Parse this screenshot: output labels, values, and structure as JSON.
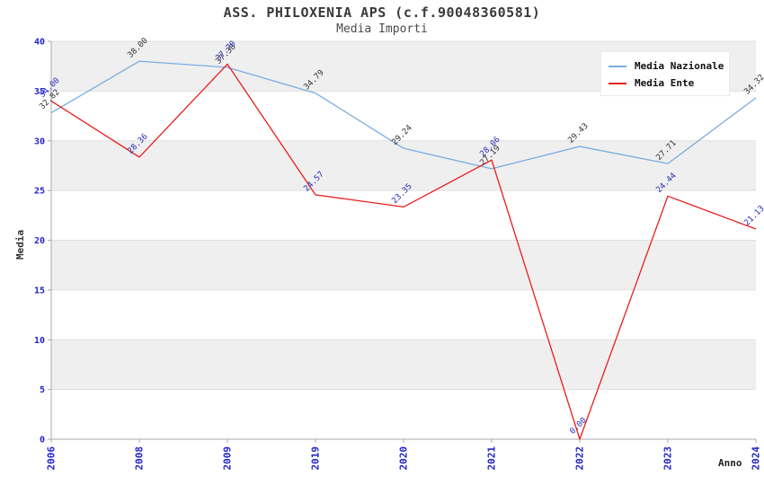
{
  "title": "ASS. PHILOXENIA APS (c.f.90048360581)",
  "subtitle": "Media Importi",
  "legend": {
    "items": [
      {
        "label": "Media Nazionale"
      },
      {
        "label": "Media Ente"
      }
    ]
  },
  "chart_data": {
    "type": "line",
    "title": "ASS. PHILOXENIA APS (c.f.90048360581)",
    "subtitle": "Media Importi",
    "xlabel": "Anno",
    "ylabel": "Media",
    "categories": [
      "2006",
      "2008",
      "2009",
      "2019",
      "2020",
      "2021",
      "2022",
      "2023",
      "2024"
    ],
    "series": [
      {
        "name": "Media Nazionale",
        "color": "#7aade0",
        "label_color": "#333333",
        "values": [
          32.82,
          38.0,
          37.38,
          34.79,
          29.24,
          27.19,
          29.43,
          27.71,
          34.32
        ]
      },
      {
        "name": "Media Ente",
        "color": "#e81e1e",
        "label_color": "#2a2ab8",
        "values": [
          34.0,
          28.36,
          37.7,
          24.57,
          23.35,
          28.06,
          0.0,
          24.44,
          21.13
        ]
      }
    ],
    "ylim": [
      0,
      40
    ],
    "ytick_step": 5,
    "yticks": [
      0,
      5,
      10,
      15,
      20,
      25,
      30,
      35,
      40
    ],
    "grid": true,
    "band_color": "#efefef",
    "grid_color": "#e0e0e0",
    "axis_color": "#a8a8a8",
    "tick_label_color": "#2222cc",
    "legend_position": "top-right"
  }
}
